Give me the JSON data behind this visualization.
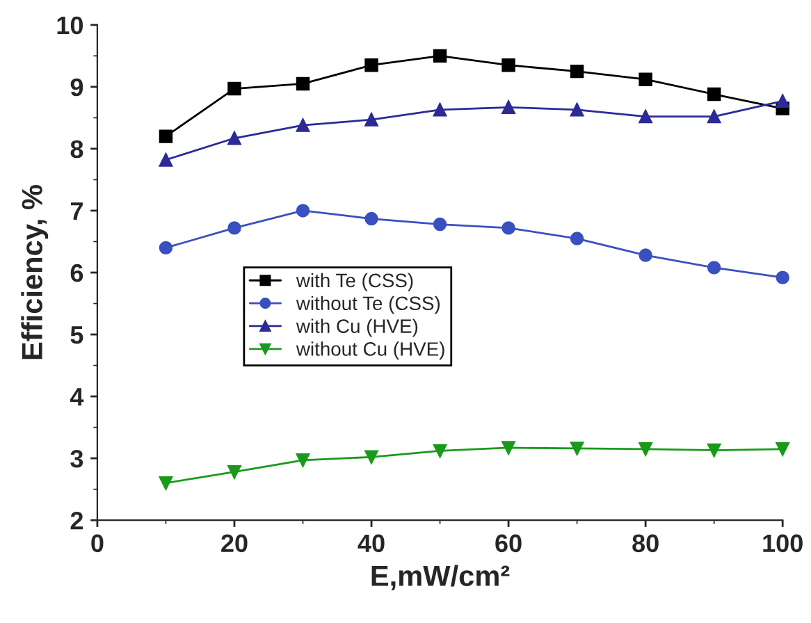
{
  "chart_data": {
    "type": "line",
    "xlabel": "E,mW/cm²",
    "ylabel": "Efficiency, %",
    "x": [
      10,
      20,
      30,
      40,
      50,
      60,
      70,
      80,
      90,
      100
    ],
    "xlim": [
      0,
      100
    ],
    "xticks": [
      0,
      20,
      40,
      60,
      80,
      100
    ],
    "ylim": [
      2,
      10
    ],
    "yticks": [
      2,
      3,
      4,
      5,
      6,
      7,
      8,
      9,
      10
    ],
    "grid": false,
    "legend": "left",
    "line_style": "solid",
    "series": [
      {
        "name": "with Te (CSS)",
        "color": "#000000",
        "marker": "square",
        "values": [
          8.2,
          8.97,
          9.05,
          9.35,
          9.5,
          9.35,
          9.25,
          9.12,
          8.88,
          8.65
        ]
      },
      {
        "name": "without Te (CSS)",
        "color": "#3a4fc0",
        "marker": "circle",
        "values": [
          6.4,
          6.72,
          7.0,
          6.87,
          6.78,
          6.72,
          6.55,
          6.28,
          6.08,
          5.92
        ]
      },
      {
        "name": "with Cu (HVE)",
        "color": "#2b2a96",
        "marker": "triangle",
        "values": [
          7.82,
          8.17,
          8.38,
          8.47,
          8.63,
          8.67,
          8.63,
          8.52,
          8.52,
          8.77
        ]
      },
      {
        "name": "without Cu (HVE)",
        "color": "#1a9a1a",
        "marker": "triangle_down",
        "values": [
          2.6,
          2.78,
          2.97,
          3.02,
          3.12,
          3.17,
          3.16,
          3.15,
          3.13,
          3.15
        ]
      }
    ]
  }
}
